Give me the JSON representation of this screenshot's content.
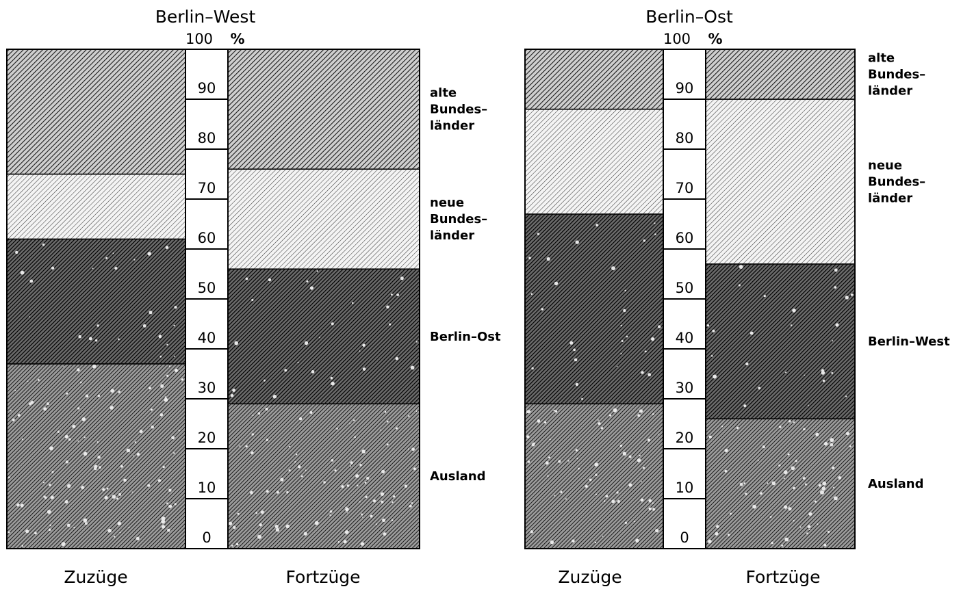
{
  "chart_data": [
    {
      "type": "bar",
      "title": "Berlin–West",
      "axis_top_label": "100",
      "unit": "%",
      "ticks": [
        "0",
        "10",
        "20",
        "30",
        "40",
        "50",
        "60",
        "70",
        "80",
        "90"
      ],
      "ylim": [
        0,
        100
      ],
      "categories": [
        "Zuzüge",
        "Fortzüge"
      ],
      "series": [
        {
          "name": "Ausland",
          "values": [
            37,
            29
          ],
          "pattern": "dense-speckled"
        },
        {
          "name": "Berlin–Ost",
          "values": [
            25,
            27
          ],
          "pattern": "dark-speckled"
        },
        {
          "name": "neue Bundes– länder",
          "legend_lines": [
            "neue",
            "Bundes–",
            "länder"
          ],
          "values": [
            13,
            20
          ],
          "pattern": "light-hatch"
        },
        {
          "name": "alte Bundes– länder",
          "legend_lines": [
            "alte",
            "Bundes–",
            "länder"
          ],
          "values": [
            25,
            24
          ],
          "pattern": "medium-hatch"
        }
      ],
      "legend_placement": "right"
    },
    {
      "type": "bar",
      "title": "Berlin–Ost",
      "axis_top_label": "100",
      "unit": "%",
      "ticks": [
        "0",
        "10",
        "20",
        "30",
        "40",
        "50",
        "60",
        "70",
        "80",
        "90"
      ],
      "ylim": [
        0,
        100
      ],
      "categories": [
        "Zuzüge",
        "Fortzüge"
      ],
      "series": [
        {
          "name": "Ausland",
          "values": [
            29,
            26
          ],
          "pattern": "dense-speckled"
        },
        {
          "name": "Berlin–West",
          "values": [
            38,
            31
          ],
          "pattern": "dark-speckled"
        },
        {
          "name": "neue Bundes– länder",
          "legend_lines": [
            "neue",
            "Bundes–",
            "länder"
          ],
          "values": [
            21,
            33
          ],
          "pattern": "light-hatch"
        },
        {
          "name": "alte Bundes– länder",
          "legend_lines": [
            "alte",
            "Bundes–",
            "länder"
          ],
          "values": [
            12,
            10
          ],
          "pattern": "medium-hatch"
        }
      ],
      "legend_placement": "right"
    }
  ]
}
